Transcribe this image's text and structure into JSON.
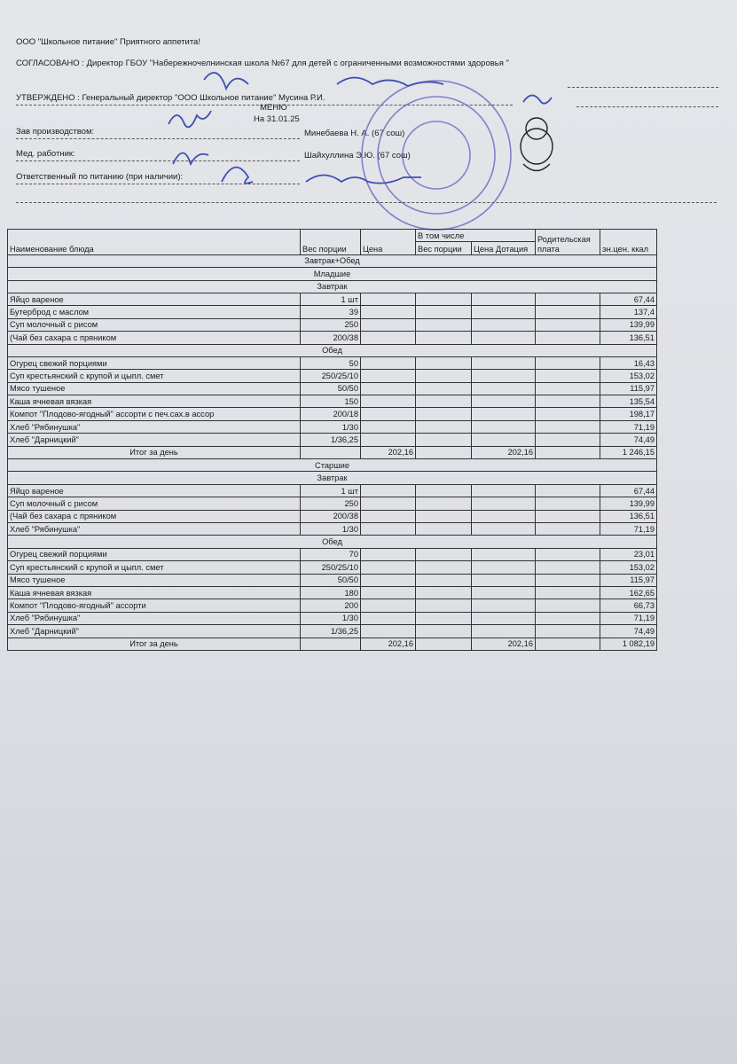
{
  "header": {
    "company": "ООО \"Школьное питание\" Приятного аппетита!",
    "agreed": "СОГЛАСОВАНО : Директор ГБОУ \"Набережночелнинская школа №67 для детей с ограниченными возможностями здоровья \"",
    "approved": "УТВЕРЖДЕНО : Генеральный директор \"ООО Школьное питание\" Мусина Р.И.",
    "title": "МЕНЮ",
    "date": "На 31.01.25",
    "signers": [
      {
        "role": "Зав производством:",
        "name": "Минебаева Н. А. (67 сош)"
      },
      {
        "role": "Мед. работник:",
        "name": "Шайхуллина Э.Ю. (67 сош)"
      },
      {
        "role": "Ответственный по питанию (при наличии):"
      }
    ]
  },
  "table": {
    "columns": {
      "dish": "Наименование блюда",
      "weight": "Вес порции",
      "price": "Цена",
      "including": "В том числе",
      "sub_weight": "Вес порции",
      "dotation": "Цена Дотация",
      "parent": "Родительская плата",
      "kcal": "эн.цен. ккал"
    },
    "rows": [
      {
        "section": "Завтрак+Обед"
      },
      {
        "section": "Младшие"
      },
      {
        "section": "Завтрак"
      },
      {
        "name": "Яйцо вареное",
        "weight": "1 шт",
        "kcal": "67,44"
      },
      {
        "name": "Бутерброд с маслом",
        "weight": "39",
        "kcal": "137,4"
      },
      {
        "name": "Суп молочный с рисом",
        "weight": "250",
        "kcal": "139,99"
      },
      {
        "name": "(Чай без сахара с пряником",
        "weight": "200/38",
        "kcal": "136,51"
      },
      {
        "section": "Обед"
      },
      {
        "name": "Огурец свежий порциями",
        "weight": "50",
        "kcal": "16,43"
      },
      {
        "name": "Суп крестьянский с крупой и цыпл. смет",
        "weight": "250/25/10",
        "kcal": "153,02"
      },
      {
        "name": "Мясо тушеное",
        "weight": "50/50",
        "kcal": "115,97"
      },
      {
        "name": "Каша ячневая вязкая",
        "weight": "150",
        "kcal": "135,54"
      },
      {
        "name": "Компот \"Плодово-ягодный\" ассорти с печ.сах.в ассор",
        "weight": "200/18",
        "kcal": "198,17"
      },
      {
        "name": "Хлеб \"Рябинушка\"",
        "weight": "1/30",
        "kcal": "71,19"
      },
      {
        "name": "Хлеб \"Дарницкий\"",
        "weight": "1/36,25",
        "kcal": "74,49"
      },
      {
        "total": "Итог за день",
        "price": "202,16",
        "dotation": "202,16",
        "kcal": "1 246,15"
      },
      {
        "section": "Старшие"
      },
      {
        "section": "Завтрак"
      },
      {
        "name": "Яйцо вареное",
        "weight": "1 шт",
        "kcal": "67,44"
      },
      {
        "name": "Суп молочный с рисом",
        "weight": "250",
        "kcal": "139,99"
      },
      {
        "name": "(Чай без сахара с пряником",
        "weight": "200/38",
        "kcal": "136,51"
      },
      {
        "name": "Хлеб \"Рябинушка\"",
        "weight": "1/30",
        "kcal": "71,19"
      },
      {
        "section": "Обед"
      },
      {
        "name": "Огурец свежий порциями",
        "weight": "70",
        "kcal": "23,01"
      },
      {
        "name": "Суп крестьянский с крупой и цыпл. смет",
        "weight": "250/25/10",
        "kcal": "153,02"
      },
      {
        "name": "Мясо тушеное",
        "weight": "50/50",
        "kcal": "115,97"
      },
      {
        "name": "Каша ячневая вязкая",
        "weight": "180",
        "kcal": "162,65"
      },
      {
        "name": "Компот \"Плодово-ягодный\" ассорти",
        "weight": "200",
        "kcal": "66,73"
      },
      {
        "name": "Хлеб \"Рябинушка\"",
        "weight": "1/30",
        "kcal": "71,19"
      },
      {
        "name": "Хлеб \"Дарницкий\"",
        "weight": "1/36,25",
        "kcal": "74,49"
      },
      {
        "total": "Итог за день",
        "price": "202,16",
        "dotation": "202,16",
        "kcal": "1 082,19"
      }
    ]
  }
}
